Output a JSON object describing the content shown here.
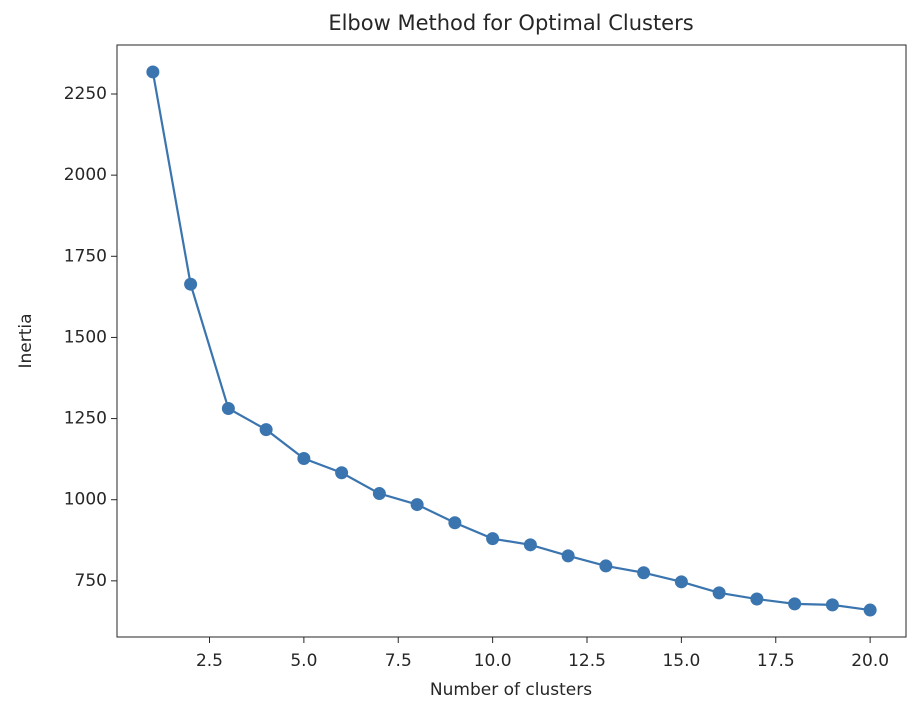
{
  "chart_data": {
    "type": "line",
    "title": "Elbow Method for Optimal Clusters",
    "xlabel": "Number of clusters",
    "ylabel": "Inertia",
    "x": [
      1,
      2,
      3,
      4,
      5,
      6,
      7,
      8,
      9,
      10,
      11,
      12,
      13,
      14,
      15,
      16,
      17,
      18,
      19,
      20
    ],
    "series": [
      {
        "name": "Inertia",
        "color": "#3b75af",
        "values": [
          2318,
          1664,
          1281,
          1216,
          1127,
          1083,
          1019,
          985,
          929,
          880,
          861,
          827,
          796,
          775,
          747,
          713,
          694,
          679,
          676,
          660
        ]
      }
    ],
    "xlim": [
      0.05,
      20.95
    ],
    "xticks": [
      2.5,
      {
        "value": 5,
        "label": "5.0"
      },
      7.5,
      {
        "value": 10,
        "label": "10.0"
      },
      12.5,
      {
        "value": 15,
        "label": "15.0"
      },
      17.5,
      {
        "value": 20,
        "label": "20.0"
      }
    ],
    "ylim": [
      577,
      2401
    ],
    "yticks": [
      750,
      1000,
      1250,
      1500,
      1750,
      2000,
      2250
    ],
    "grid": false,
    "markers": true
  }
}
